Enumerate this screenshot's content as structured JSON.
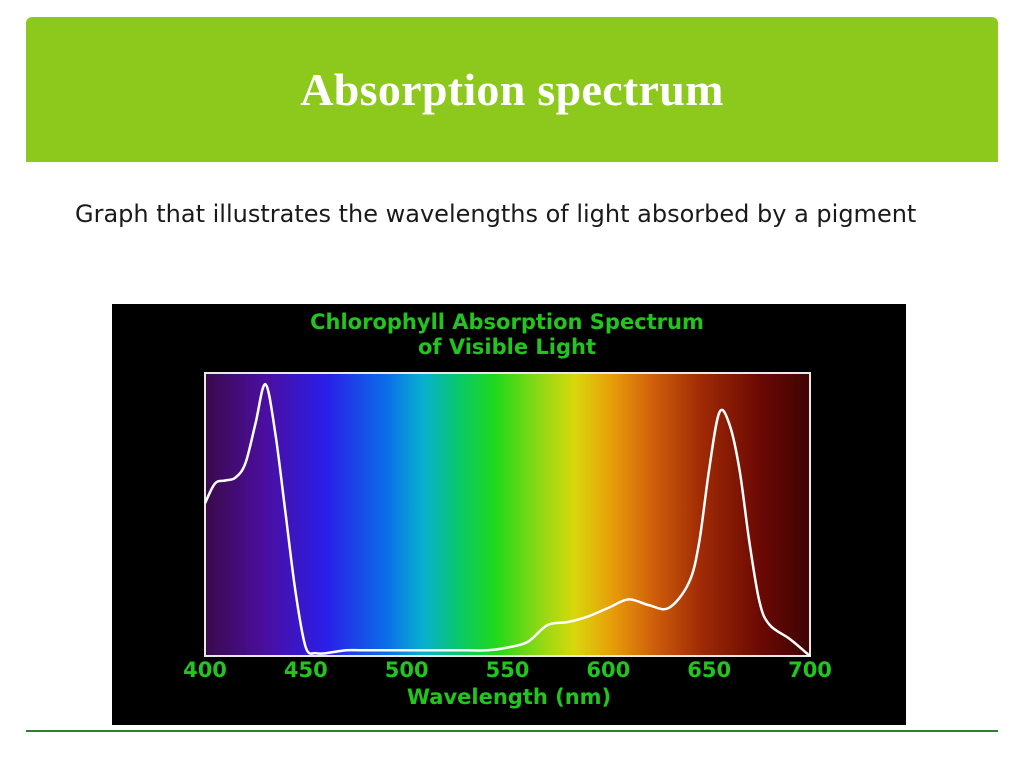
{
  "slide": {
    "title": "Absorption spectrum",
    "body": "Graph that illustrates the wavelengths of light absorbed by a pigment"
  },
  "colors": {
    "title_bar": "#8dc91c",
    "title_text": "#ffffff",
    "chart_background": "#000000",
    "chart_text": "#22c41e",
    "curve": "#ffffff",
    "footer_line": "#2e7d32"
  },
  "chart_data": {
    "type": "line",
    "title": "Chlorophyll Absorption Spectrum",
    "subtitle": "of Visible Light",
    "xlabel": "Wavelength (nm)",
    "ylabel": "",
    "xlim": [
      400,
      700
    ],
    "ylim": [
      0,
      1
    ],
    "xticks": [
      "400",
      "450",
      "500",
      "550",
      "600",
      "650",
      "700"
    ],
    "grid": false,
    "background": "visible light spectrum gradient from violet (400 nm) to dark red (700 nm)",
    "series": [
      {
        "x": [
          400,
          405,
          410,
          415,
          420,
          425,
          430,
          435,
          440,
          445,
          450,
          455,
          460,
          470,
          480,
          490,
          500,
          510,
          520,
          530,
          540,
          550,
          560,
          570,
          580,
          590,
          600,
          610,
          620,
          630,
          640,
          645,
          650,
          655,
          660,
          665,
          670,
          675,
          680,
          690,
          700
        ],
        "y": [
          0.54,
          0.61,
          0.62,
          0.63,
          0.68,
          0.82,
          0.96,
          0.78,
          0.5,
          0.22,
          0.03,
          0.01,
          0.01,
          0.02,
          0.02,
          0.02,
          0.02,
          0.02,
          0.02,
          0.02,
          0.02,
          0.03,
          0.05,
          0.11,
          0.12,
          0.14,
          0.17,
          0.2,
          0.18,
          0.17,
          0.26,
          0.4,
          0.66,
          0.86,
          0.82,
          0.66,
          0.4,
          0.19,
          0.11,
          0.06,
          0.0
        ]
      }
    ]
  }
}
